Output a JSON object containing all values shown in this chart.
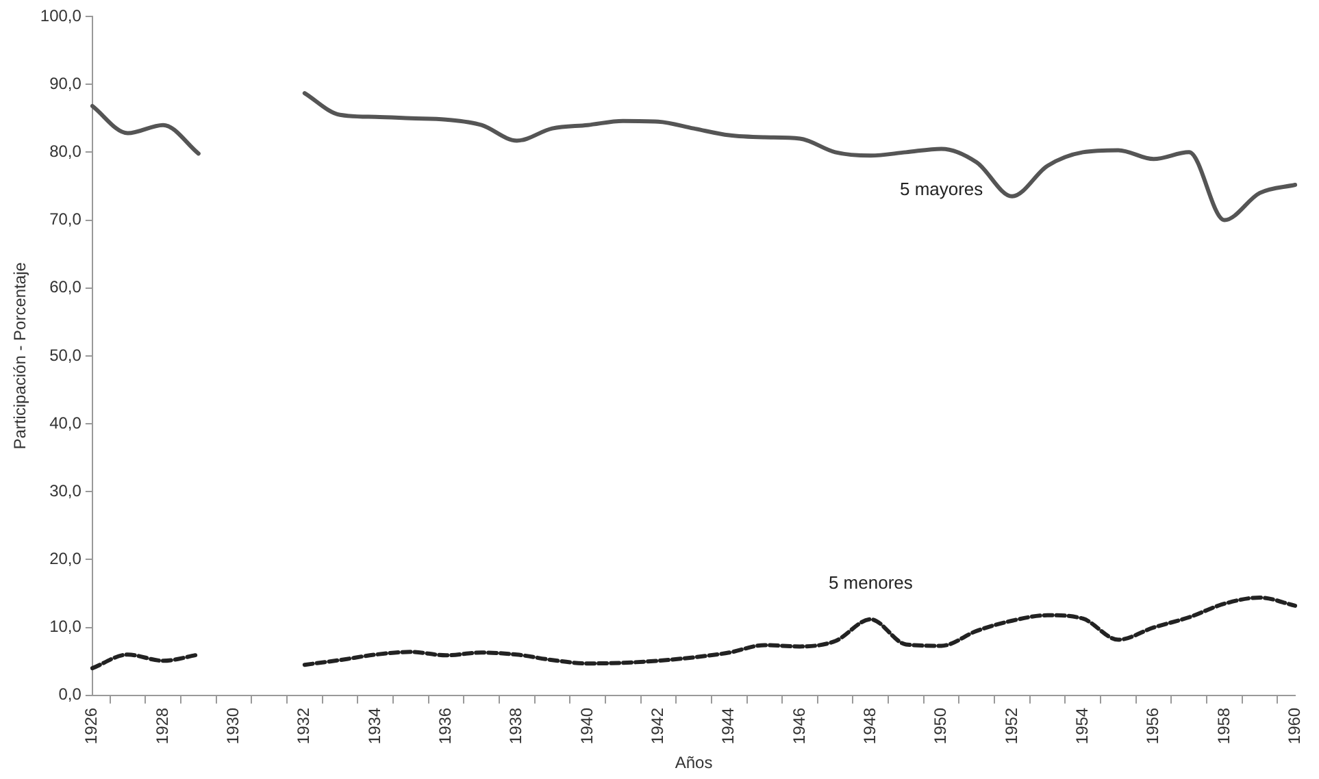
{
  "chart_data": {
    "type": "line",
    "xlabel": "Años",
    "ylabel": "Participación - Porcentaje",
    "categories": [
      "1926",
      null,
      "1928",
      null,
      "1930",
      null,
      "1932",
      null,
      "1934",
      null,
      "1936",
      null,
      "1938",
      null,
      "1940",
      null,
      "1942",
      null,
      "1944",
      null,
      "1946",
      null,
      "1948",
      null,
      "1950",
      null,
      "1952",
      null,
      "1954",
      null,
      "1956",
      null,
      "1958",
      null,
      "1960"
    ],
    "ylim": [
      0,
      100
    ],
    "yticks": [
      {
        "value": 0,
        "label": "0,0"
      },
      {
        "value": 10,
        "label": "10,0"
      },
      {
        "value": 20,
        "label": "20,0"
      },
      {
        "value": 30,
        "label": "30,0"
      },
      {
        "value": 40,
        "label": "40,0"
      },
      {
        "value": 50,
        "label": "50,0"
      },
      {
        "value": 60,
        "label": "60,0"
      },
      {
        "value": 70,
        "label": "70,0"
      },
      {
        "value": 80,
        "label": "80,0"
      },
      {
        "value": 90,
        "label": "90,0"
      },
      {
        "value": 100,
        "label": "100,0"
      }
    ],
    "grid": false,
    "legend": false,
    "marker": "none",
    "series": [
      {
        "name": "5 mayores",
        "color": "#555555",
        "line_style": "solid",
        "values": [
          86.8,
          82.8,
          84,
          79.8,
          null,
          null,
          88.7,
          85.5,
          85.2,
          85,
          84.8,
          84,
          81.7,
          83.5,
          84,
          84.6,
          84.5,
          83.5,
          82.5,
          82.2,
          82,
          80,
          79.5,
          80,
          80.5,
          78.5,
          73.5,
          78,
          80,
          80.3,
          79,
          80,
          70,
          74,
          75.2
        ]
      },
      {
        "name": "5 menores",
        "color": "#222222",
        "line_style": "dashed",
        "values": [
          4,
          6,
          5.1,
          6,
          null,
          null,
          4.5,
          5.2,
          6,
          6.4,
          5.9,
          6.3,
          6,
          5.2,
          4.7,
          4.8,
          5.1,
          5.6,
          6.3,
          7.4,
          7.2,
          8,
          11.2,
          7.5,
          7.3,
          9.5,
          11,
          11.8,
          11.3,
          8.2,
          10,
          11.5,
          13.5,
          14.4,
          13.2
        ]
      }
    ]
  }
}
